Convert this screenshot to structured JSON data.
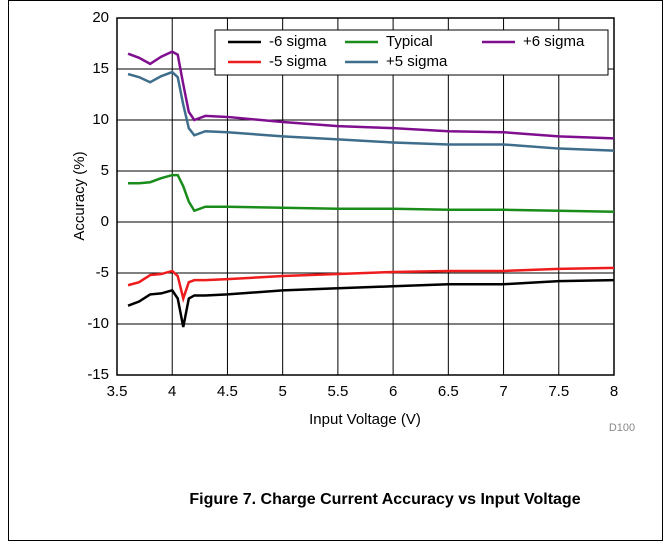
{
  "chart_data": {
    "type": "line",
    "ylabel": "Accuracy (%)",
    "xlabel": "Input Voltage (V)",
    "annotation": "D100",
    "caption": "Figure 7. Charge Current Accuracy vs Input Voltage",
    "x": [
      3.6,
      3.7,
      3.8,
      3.9,
      4.0,
      4.05,
      4.1,
      4.15,
      4.2,
      4.3,
      4.5,
      5,
      5.5,
      6,
      6.5,
      7,
      7.5,
      8
    ],
    "series": [
      {
        "name": "-6 sigma",
        "color": "#000000",
        "values": [
          -8.2,
          -7.8,
          -7.1,
          -7.0,
          -6.7,
          -7.5,
          -10.3,
          -7.5,
          -7.2,
          -7.2,
          -7.1,
          -6.7,
          -6.5,
          -6.3,
          -6.1,
          -6.1,
          -5.8,
          -5.7
        ]
      },
      {
        "name": "-5 sigma",
        "color": "#ee1c1c",
        "values": [
          -6.2,
          -5.9,
          -5.2,
          -5.1,
          -4.8,
          -5.3,
          -7.5,
          -5.9,
          -5.7,
          -5.7,
          -5.6,
          -5.3,
          -5.1,
          -4.9,
          -4.8,
          -4.8,
          -4.6,
          -4.5
        ]
      },
      {
        "name": "Typical",
        "color": "#1a8c1a",
        "values": [
          3.8,
          3.8,
          3.9,
          4.3,
          4.6,
          4.6,
          3.5,
          2.0,
          1.1,
          1.5,
          1.5,
          1.4,
          1.3,
          1.3,
          1.2,
          1.2,
          1.1,
          1.0
        ]
      },
      {
        "name": "+5 sigma",
        "color": "#3e6e8c",
        "values": [
          14.5,
          14.2,
          13.7,
          14.3,
          14.7,
          14.2,
          11.5,
          9.2,
          8.5,
          8.9,
          8.8,
          8.4,
          8.1,
          7.8,
          7.6,
          7.6,
          7.2,
          7.0
        ]
      },
      {
        "name": "+6 sigma",
        "color": "#800f90",
        "values": [
          16.5,
          16.1,
          15.5,
          16.2,
          16.7,
          16.4,
          13.5,
          10.8,
          10.0,
          10.4,
          10.3,
          9.8,
          9.4,
          9.2,
          8.9,
          8.8,
          8.4,
          8.2
        ]
      }
    ],
    "xlim": [
      3.5,
      8
    ],
    "xticks": [
      3.5,
      4,
      4.5,
      5,
      5.5,
      6,
      6.5,
      7,
      7.5,
      8
    ],
    "ylim": [
      -15,
      20
    ],
    "yticks": [
      -15,
      -10,
      -5,
      0,
      5,
      10,
      15,
      20
    ],
    "grid": true,
    "legend": "upper right"
  }
}
